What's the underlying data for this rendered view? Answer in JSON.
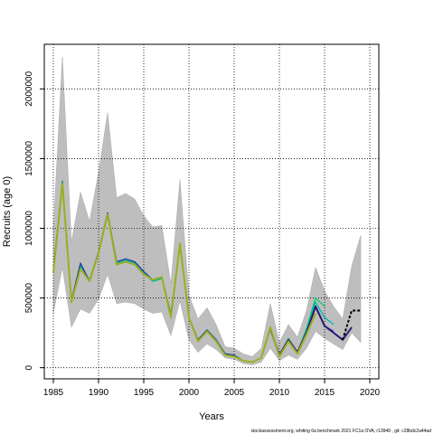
{
  "chart_data": {
    "type": "line",
    "title": "",
    "xlabel": "Years",
    "ylabel": "Recruits (age 0)",
    "xlim": [
      1984,
      2021
    ],
    "ylim": [
      -80000,
      2320000
    ],
    "x_ticks": [
      1985,
      1990,
      1995,
      2000,
      2005,
      2010,
      2015,
      2020
    ],
    "y_ticks": [
      0,
      500000,
      1000000,
      1500000,
      2000000
    ],
    "grid": true,
    "grid_style": "dotted",
    "confidence_band": {
      "color": "#bebebe",
      "x": [
        1985,
        1986,
        1987,
        1988,
        1989,
        1990,
        1991,
        1992,
        1993,
        1994,
        1995,
        1996,
        1997,
        1998,
        1999,
        2000,
        2001,
        2002,
        2003,
        2004,
        2005,
        2006,
        2007,
        2008,
        2009,
        2010,
        2011,
        2012,
        2013,
        2014,
        2015,
        2016,
        2017,
        2018,
        2019
      ],
      "lower": [
        390000,
        720000,
        290000,
        420000,
        390000,
        490000,
        670000,
        460000,
        470000,
        460000,
        420000,
        390000,
        400000,
        230000,
        480000,
        200000,
        110000,
        170000,
        130000,
        70000,
        60000,
        30000,
        20000,
        40000,
        140000,
        50000,
        90000,
        60000,
        140000,
        260000,
        210000,
        170000,
        130000,
        250000,
        180000
      ],
      "upper": [
        1000000,
        2230000,
        900000,
        1260000,
        1050000,
        1400000,
        1830000,
        1220000,
        1250000,
        1210000,
        1090000,
        1010000,
        1020000,
        600000,
        1350000,
        520000,
        350000,
        430000,
        310000,
        150000,
        140000,
        100000,
        80000,
        140000,
        460000,
        180000,
        310000,
        220000,
        410000,
        720000,
        550000,
        440000,
        350000,
        730000,
        950000
      ]
    },
    "series": [
      {
        "color": "#00cc66",
        "style": "solid",
        "x": [
          1985,
          1986,
          1987,
          1988,
          1989,
          1990,
          1991,
          1992,
          1993,
          1994,
          1995,
          1996,
          1997,
          1998,
          1999,
          2000,
          2001,
          2002,
          2003,
          2004,
          2005,
          2006,
          2007,
          2008,
          2009,
          2010,
          2011,
          2012,
          2013,
          2014,
          2015
        ],
        "values": [
          690000,
          1340000,
          470000,
          720000,
          620000,
          820000,
          1110000,
          750000,
          770000,
          750000,
          680000,
          620000,
          640000,
          380000,
          890000,
          360000,
          200000,
          270000,
          200000,
          100000,
          90000,
          50000,
          40000,
          70000,
          290000,
          90000,
          210000,
          110000,
          280000,
          500000,
          440000
        ]
      },
      {
        "color": "#00b3b3",
        "style": "solid",
        "x": [
          1985,
          1986,
          1987,
          1988,
          1989,
          1990,
          1991,
          1992,
          1993,
          1994,
          1995,
          1996,
          1997,
          1998,
          1999,
          2000,
          2001,
          2002,
          2003,
          2004,
          2005,
          2006,
          2007,
          2008,
          2009,
          2010,
          2011,
          2012,
          2013,
          2014,
          2015,
          2016
        ],
        "values": [
          700000,
          1330000,
          480000,
          730000,
          630000,
          830000,
          1110000,
          750000,
          770000,
          750000,
          680000,
          620000,
          640000,
          380000,
          880000,
          360000,
          200000,
          270000,
          200000,
          100000,
          90000,
          50000,
          40000,
          70000,
          280000,
          90000,
          200000,
          110000,
          270000,
          470000,
          360000,
          310000
        ]
      },
      {
        "color": "#1f3f99",
        "style": "solid",
        "x": [
          1985,
          1986,
          1987,
          1988,
          1989,
          1990,
          1991,
          1992,
          1993,
          1994,
          1995,
          1996,
          1997,
          1998,
          1999,
          2000,
          2001,
          2002,
          2003,
          2004,
          2005,
          2006,
          2007,
          2008,
          2009,
          2010,
          2011,
          2012,
          2013,
          2014,
          2015,
          2016
        ],
        "values": [
          700000,
          1330000,
          480000,
          750000,
          620000,
          830000,
          1110000,
          760000,
          780000,
          760000,
          690000,
          630000,
          650000,
          380000,
          880000,
          360000,
          200000,
          270000,
          200000,
          100000,
          90000,
          50000,
          40000,
          70000,
          280000,
          90000,
          200000,
          110000,
          260000,
          430000,
          300000,
          260000
        ]
      },
      {
        "color": "#2a1a7a",
        "style": "solid",
        "width": 2,
        "x": [
          2009,
          2010,
          2011,
          2012,
          2013,
          2014,
          2015,
          2016,
          2017,
          2018
        ],
        "values": [
          280000,
          90000,
          200000,
          110000,
          250000,
          440000,
          300000,
          250000,
          200000,
          290000
        ]
      },
      {
        "color": "#9ab020",
        "style": "solid",
        "width": 2,
        "x": [
          1985,
          1986,
          1987,
          1988,
          1989,
          1990,
          1991,
          1992,
          1993,
          1994,
          1995,
          1996,
          1997,
          1998,
          1999,
          2000,
          2001,
          2002,
          2003,
          2004,
          2005,
          2006,
          2007,
          2008,
          2009,
          2010,
          2011,
          2012,
          2013,
          2014
        ],
        "values": [
          680000,
          1320000,
          470000,
          710000,
          620000,
          820000,
          1100000,
          740000,
          760000,
          740000,
          670000,
          630000,
          650000,
          360000,
          890000,
          360000,
          190000,
          260000,
          190000,
          90000,
          80000,
          50000,
          40000,
          70000,
          290000,
          80000,
          190000,
          100000,
          240000,
          390000
        ]
      },
      {
        "color": "#000000",
        "style": "dashed",
        "width": 2,
        "x": [
          2017,
          2018,
          2019
        ],
        "values": [
          200000,
          410000,
          410000
        ]
      }
    ]
  },
  "footer": "stockassessment.org,  whiting  6a  benchmark  2021  FC1a  OVA,  r13949 ,  git:  c28bdc2a44ad"
}
